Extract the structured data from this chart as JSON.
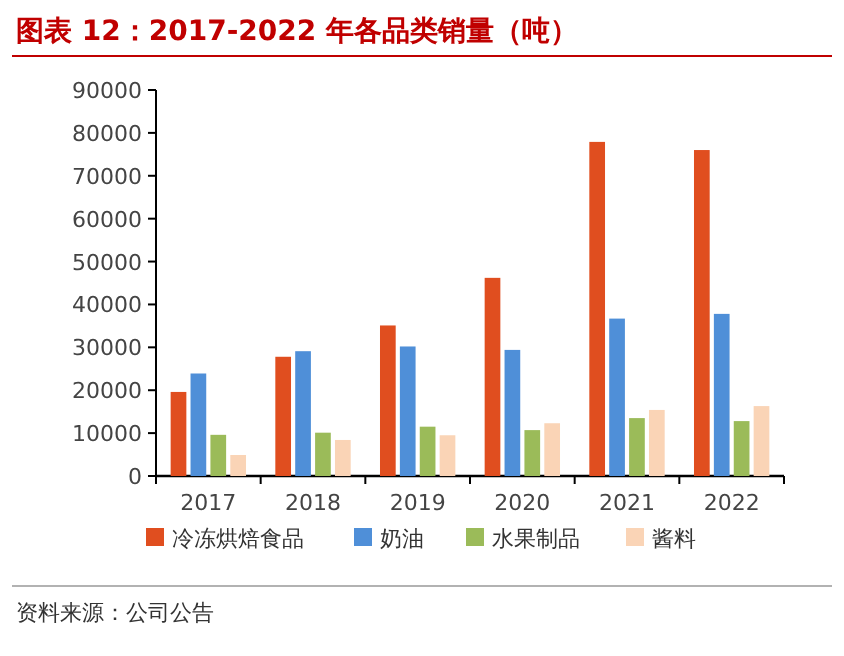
{
  "chart_data": {
    "type": "bar",
    "title": "图表 12：2017-2022 年各品类销量（吨）",
    "categories": [
      "2017",
      "2018",
      "2019",
      "2020",
      "2021",
      "2022"
    ],
    "series": [
      {
        "name": "冷冻烘焙食品",
        "color": "#e04e1f",
        "values": [
          19600,
          27800,
          35100,
          46200,
          77900,
          76000
        ]
      },
      {
        "name": "奶油",
        "color": "#4f8fd8",
        "values": [
          23900,
          29100,
          30200,
          29400,
          36700,
          37800
        ]
      },
      {
        "name": "水果制品",
        "color": "#9bbb59",
        "values": [
          9600,
          10100,
          11500,
          10700,
          13500,
          12800
        ]
      },
      {
        "name": "酱料",
        "color": "#fad4b6",
        "values": [
          4900,
          8400,
          9500,
          12300,
          15400,
          16300
        ]
      }
    ],
    "ylim": [
      0,
      90000
    ],
    "yticks": [
      0,
      10000,
      20000,
      30000,
      40000,
      50000,
      60000,
      70000,
      80000,
      90000
    ],
    "legend": "bottom",
    "grid": false,
    "annotations": [
      "资料来源：公司公告"
    ]
  }
}
